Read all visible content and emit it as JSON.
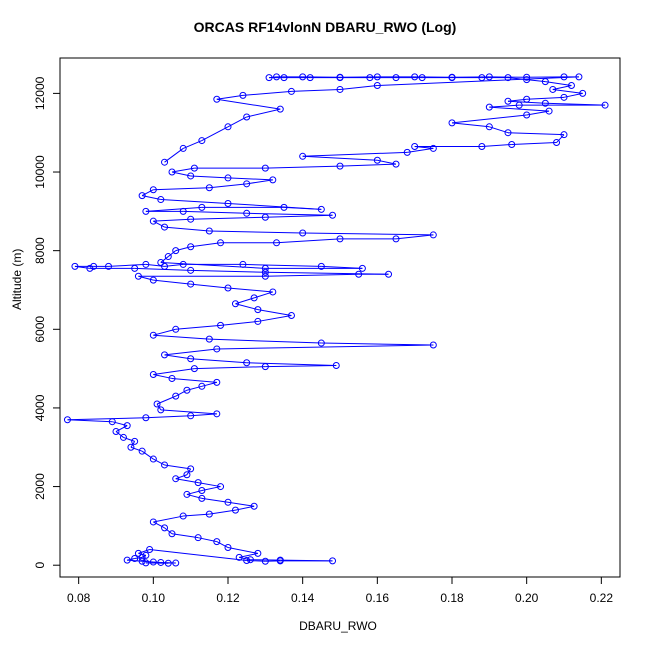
{
  "chart_data": {
    "type": "scatter",
    "title": "ORCAS RF14vlonN DBARU_RWO (Log)",
    "xlabel": "DBARU_RWO",
    "ylabel": "Altitude (m)",
    "xlim": [
      0.075,
      0.225
    ],
    "ylim": [
      -300,
      12900
    ],
    "xticks": [
      0.08,
      0.1,
      0.12,
      0.14,
      0.16,
      0.18,
      0.2,
      0.22
    ],
    "xtick_labels": [
      "0.08",
      "0.10",
      "0.12",
      "0.14",
      "0.16",
      "0.18",
      "0.20",
      "0.22"
    ],
    "yticks": [
      0,
      2000,
      4000,
      6000,
      8000,
      10000,
      12000
    ],
    "ytick_labels": [
      "0",
      "2000",
      "4000",
      "6000",
      "8000",
      "10000",
      "12000"
    ],
    "series": [
      {
        "name": "DBARU_RWO",
        "style": "points-and-lines",
        "color": "#0000ff",
        "points": [
          [
            0.104,
            50
          ],
          [
            0.098,
            60
          ],
          [
            0.106,
            55
          ],
          [
            0.102,
            70
          ],
          [
            0.1,
            80
          ],
          [
            0.097,
            100
          ],
          [
            0.093,
            130
          ],
          [
            0.095,
            170
          ],
          [
            0.097,
            200
          ],
          [
            0.098,
            250
          ],
          [
            0.096,
            300
          ],
          [
            0.099,
            400
          ],
          [
            0.125,
            120
          ],
          [
            0.13,
            100
          ],
          [
            0.134,
            110
          ],
          [
            0.148,
            110
          ],
          [
            0.134,
            130
          ],
          [
            0.126,
            140
          ],
          [
            0.123,
            200
          ],
          [
            0.128,
            300
          ],
          [
            0.12,
            450
          ],
          [
            0.117,
            600
          ],
          [
            0.112,
            700
          ],
          [
            0.105,
            800
          ],
          [
            0.103,
            950
          ],
          [
            0.1,
            1100
          ],
          [
            0.108,
            1250
          ],
          [
            0.115,
            1300
          ],
          [
            0.122,
            1400
          ],
          [
            0.127,
            1500
          ],
          [
            0.12,
            1600
          ],
          [
            0.113,
            1700
          ],
          [
            0.109,
            1800
          ],
          [
            0.113,
            1900
          ],
          [
            0.118,
            2000
          ],
          [
            0.112,
            2100
          ],
          [
            0.106,
            2200
          ],
          [
            0.109,
            2300
          ],
          [
            0.11,
            2450
          ],
          [
            0.103,
            2550
          ],
          [
            0.1,
            2700
          ],
          [
            0.097,
            2900
          ],
          [
            0.094,
            3000
          ],
          [
            0.095,
            3150
          ],
          [
            0.092,
            3250
          ],
          [
            0.09,
            3400
          ],
          [
            0.093,
            3550
          ],
          [
            0.089,
            3650
          ],
          [
            0.077,
            3700
          ],
          [
            0.098,
            3750
          ],
          [
            0.11,
            3800
          ],
          [
            0.117,
            3850
          ],
          [
            0.102,
            3950
          ],
          [
            0.101,
            4100
          ],
          [
            0.106,
            4300
          ],
          [
            0.109,
            4450
          ],
          [
            0.113,
            4550
          ],
          [
            0.117,
            4650
          ],
          [
            0.105,
            4750
          ],
          [
            0.1,
            4850
          ],
          [
            0.111,
            5000
          ],
          [
            0.13,
            5050
          ],
          [
            0.149,
            5080
          ],
          [
            0.125,
            5150
          ],
          [
            0.11,
            5250
          ],
          [
            0.103,
            5350
          ],
          [
            0.117,
            5500
          ],
          [
            0.175,
            5600
          ],
          [
            0.145,
            5650
          ],
          [
            0.115,
            5750
          ],
          [
            0.1,
            5850
          ],
          [
            0.106,
            6000
          ],
          [
            0.118,
            6100
          ],
          [
            0.128,
            6200
          ],
          [
            0.137,
            6350
          ],
          [
            0.128,
            6500
          ],
          [
            0.122,
            6650
          ],
          [
            0.127,
            6800
          ],
          [
            0.132,
            6950
          ],
          [
            0.12,
            7050
          ],
          [
            0.11,
            7150
          ],
          [
            0.1,
            7250
          ],
          [
            0.096,
            7350
          ],
          [
            0.13,
            7350
          ],
          [
            0.155,
            7400
          ],
          [
            0.163,
            7400
          ],
          [
            0.13,
            7450
          ],
          [
            0.11,
            7500
          ],
          [
            0.095,
            7550
          ],
          [
            0.083,
            7550
          ],
          [
            0.079,
            7600
          ],
          [
            0.084,
            7600
          ],
          [
            0.088,
            7600
          ],
          [
            0.098,
            7650
          ],
          [
            0.103,
            7600
          ],
          [
            0.108,
            7650
          ],
          [
            0.124,
            7650
          ],
          [
            0.145,
            7600
          ],
          [
            0.156,
            7550
          ],
          [
            0.13,
            7550
          ],
          [
            0.102,
            7700
          ],
          [
            0.104,
            7850
          ],
          [
            0.106,
            8000
          ],
          [
            0.11,
            8100
          ],
          [
            0.118,
            8200
          ],
          [
            0.133,
            8200
          ],
          [
            0.15,
            8300
          ],
          [
            0.165,
            8300
          ],
          [
            0.175,
            8400
          ],
          [
            0.14,
            8450
          ],
          [
            0.115,
            8500
          ],
          [
            0.103,
            8600
          ],
          [
            0.1,
            8750
          ],
          [
            0.11,
            8800
          ],
          [
            0.13,
            8850
          ],
          [
            0.148,
            8900
          ],
          [
            0.125,
            8950
          ],
          [
            0.108,
            9000
          ],
          [
            0.098,
            9000
          ],
          [
            0.113,
            9100
          ],
          [
            0.135,
            9100
          ],
          [
            0.145,
            9050
          ],
          [
            0.12,
            9200
          ],
          [
            0.102,
            9300
          ],
          [
            0.097,
            9400
          ],
          [
            0.1,
            9550
          ],
          [
            0.115,
            9600
          ],
          [
            0.125,
            9700
          ],
          [
            0.132,
            9800
          ],
          [
            0.12,
            9850
          ],
          [
            0.11,
            9900
          ],
          [
            0.105,
            10000
          ],
          [
            0.111,
            10100
          ],
          [
            0.13,
            10100
          ],
          [
            0.15,
            10150
          ],
          [
            0.165,
            10200
          ],
          [
            0.16,
            10300
          ],
          [
            0.14,
            10400
          ],
          [
            0.168,
            10500
          ],
          [
            0.175,
            10600
          ],
          [
            0.17,
            10650
          ],
          [
            0.188,
            10650
          ],
          [
            0.196,
            10700
          ],
          [
            0.208,
            10750
          ],
          [
            0.21,
            10950
          ],
          [
            0.195,
            11000
          ],
          [
            0.19,
            11150
          ],
          [
            0.18,
            11250
          ],
          [
            0.2,
            11450
          ],
          [
            0.206,
            11550
          ],
          [
            0.19,
            11650
          ],
          [
            0.198,
            11700
          ],
          [
            0.221,
            11700
          ],
          [
            0.205,
            11750
          ],
          [
            0.195,
            11800
          ],
          [
            0.2,
            11850
          ],
          [
            0.21,
            11900
          ],
          [
            0.215,
            12000
          ],
          [
            0.207,
            12100
          ],
          [
            0.212,
            12200
          ],
          [
            0.205,
            12300
          ],
          [
            0.2,
            12350
          ],
          [
            0.195,
            12400
          ],
          [
            0.188,
            12400
          ],
          [
            0.18,
            12400
          ],
          [
            0.172,
            12400
          ],
          [
            0.165,
            12400
          ],
          [
            0.158,
            12400
          ],
          [
            0.15,
            12400
          ],
          [
            0.142,
            12400
          ],
          [
            0.135,
            12400
          ],
          [
            0.131,
            12400
          ],
          [
            0.133,
            12420
          ],
          [
            0.14,
            12420
          ],
          [
            0.15,
            12410
          ],
          [
            0.16,
            12420
          ],
          [
            0.17,
            12420
          ],
          [
            0.18,
            12410
          ],
          [
            0.19,
            12420
          ],
          [
            0.2,
            12410
          ],
          [
            0.21,
            12420
          ],
          [
            0.214,
            12420
          ],
          [
            0.16,
            12200
          ],
          [
            0.15,
            12100
          ],
          [
            0.137,
            12050
          ],
          [
            0.124,
            11950
          ],
          [
            0.117,
            11850
          ],
          [
            0.134,
            11600
          ],
          [
            0.125,
            11400
          ],
          [
            0.12,
            11150
          ],
          [
            0.113,
            10800
          ],
          [
            0.108,
            10600
          ],
          [
            0.103,
            10250
          ]
        ]
      }
    ]
  }
}
